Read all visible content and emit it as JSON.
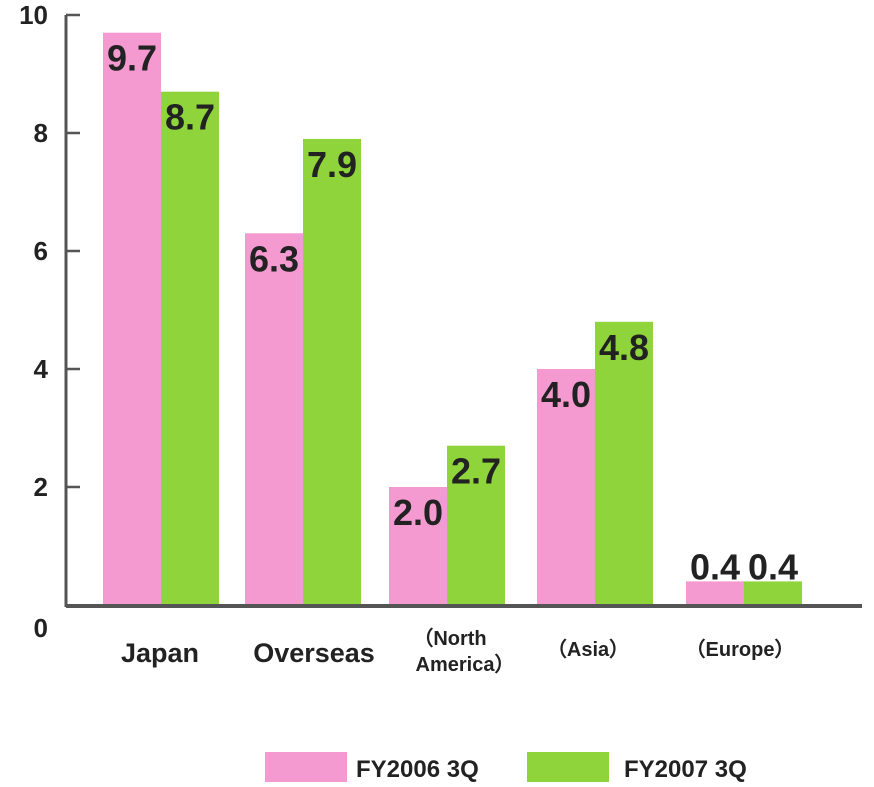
{
  "chart_data": {
    "type": "bar",
    "title": "",
    "xlabel": "",
    "ylabel": "",
    "ylim": [
      0,
      10
    ],
    "yticks": [
      0,
      2,
      4,
      6,
      8,
      10
    ],
    "grid": false,
    "legend_position": "bottom",
    "categories": [
      [
        "Japan"
      ],
      [
        "Overseas"
      ],
      [
        "（North",
        "America）"
      ],
      [
        "（Asia）"
      ],
      [
        "（Europe）"
      ]
    ],
    "series": [
      {
        "name": "FY2006 3Q",
        "color": "#f49ad0",
        "values": [
          9.7,
          6.3,
          2.0,
          4.0,
          0.4
        ],
        "labels": [
          "9.7",
          "6.3",
          "2.0",
          "4.0",
          "0.4"
        ]
      },
      {
        "name": "FY2007 3Q",
        "color": "#8fd43a",
        "values": [
          8.7,
          7.9,
          2.7,
          4.8,
          0.4
        ],
        "labels": [
          "8.7",
          "7.9",
          "2.7",
          "4.8",
          "0.4"
        ]
      }
    ]
  },
  "colors": {
    "axis": "#555555",
    "text": "#222222"
  }
}
